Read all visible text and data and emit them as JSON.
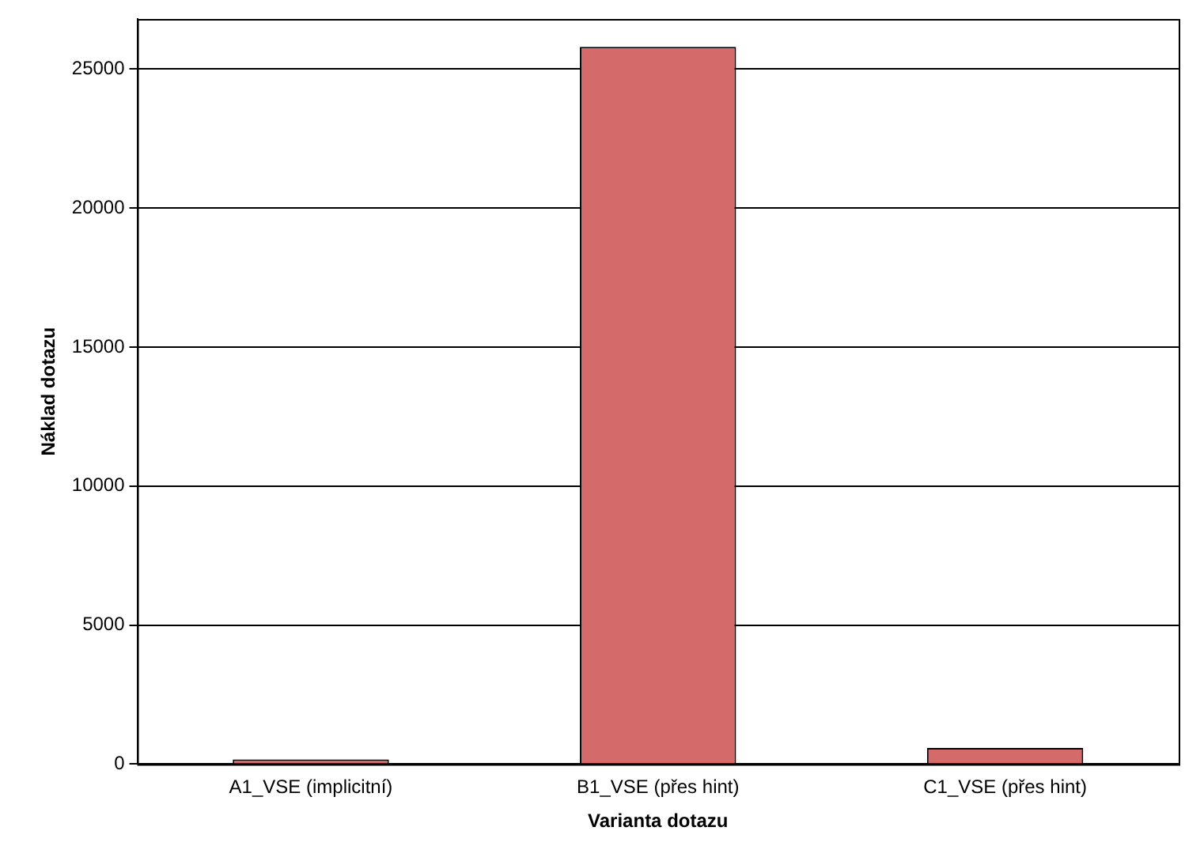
{
  "chart_data": {
    "type": "bar",
    "xlabel": "Varianta dotazu",
    "ylabel": "Náklad dotazu",
    "categories": [
      "A1_VSE (implicitní)",
      "B1_VSE (přes hint)",
      "C1_VSE (přes hint)"
    ],
    "values": [
      170,
      25800,
      580
    ],
    "color": "#d46a6a",
    "ylim": [
      0,
      26800
    ],
    "yticks": [
      0,
      5000,
      10000,
      15000,
      20000,
      25000
    ],
    "grid": "y",
    "legend": false
  }
}
